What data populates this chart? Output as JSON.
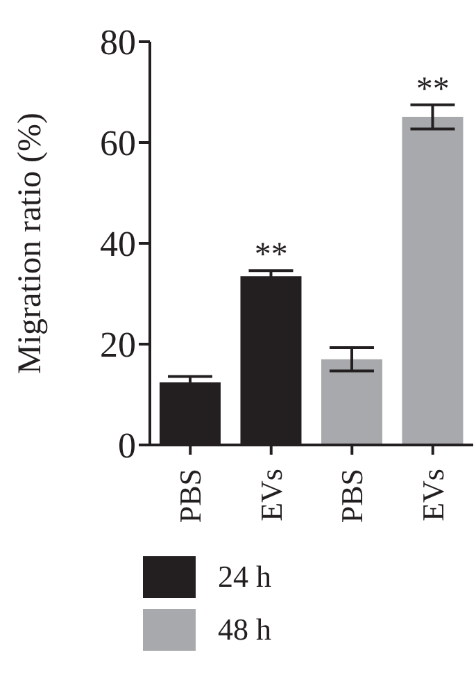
{
  "chart_data": {
    "type": "bar",
    "ylabel": "Migration ratio (%)",
    "categories": [
      "PBS",
      "EVs",
      "PBS",
      "EVs"
    ],
    "series": [
      {
        "name": "24 h",
        "color": "#231f20",
        "values": [
          12.4,
          33.5,
          null,
          null
        ],
        "errors": [
          1.2,
          1.1,
          null,
          null
        ]
      },
      {
        "name": "48 h",
        "color": "#a7a9ac",
        "values": [
          null,
          null,
          17.0,
          65.1
        ],
        "errors": [
          null,
          null,
          2.3,
          2.4
        ]
      }
    ],
    "ylim": [
      0,
      80
    ],
    "yticks": [
      0,
      20,
      40,
      60,
      80
    ],
    "legend": "bottom",
    "annotations": [
      "**",
      "**"
    ]
  }
}
